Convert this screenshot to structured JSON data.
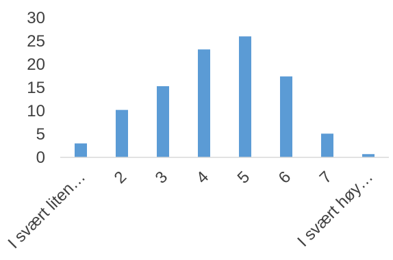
{
  "colors": {
    "bar": "#5B9BD5",
    "axis": "#D9D9D9",
    "text": "#404040"
  },
  "chart_data": {
    "type": "bar",
    "categories": [
      "I svært liten…",
      "2",
      "3",
      "4",
      "5",
      "6",
      "7",
      "I svært høy…"
    ],
    "values": [
      3,
      10.2,
      15.3,
      23.2,
      26,
      17.4,
      5.1,
      0.7
    ],
    "ylim": [
      0,
      30
    ],
    "yticks": [
      0,
      5,
      10,
      15,
      20,
      25,
      30
    ],
    "grid": false,
    "legend": "none"
  }
}
